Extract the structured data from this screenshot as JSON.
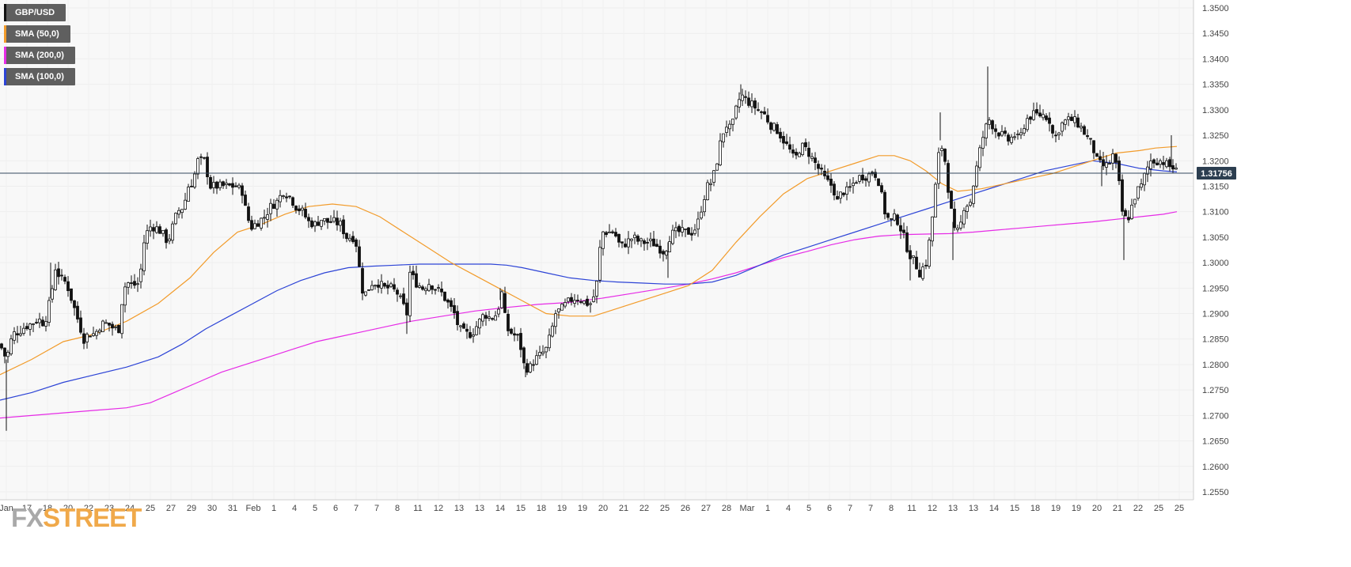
{
  "chart_data": {
    "type": "candlestick",
    "symbol": "GBP/USD",
    "current_price_label": "1.31756",
    "current_price": 1.31756,
    "ylim": [
      1.2525,
      1.3525
    ],
    "y_ticks": [
      "1.3500",
      "1.3450",
      "1.3400",
      "1.3350",
      "1.3300",
      "1.3250",
      "1.3200",
      "1.3150",
      "1.3100",
      "1.3050",
      "1.3000",
      "1.2950",
      "1.2900",
      "1.2850",
      "1.2800",
      "1.2750",
      "1.2700",
      "1.2650",
      "1.2600",
      "1.2550"
    ],
    "x_ticks": [
      "Jan",
      "17",
      "18",
      "20",
      "22",
      "23",
      "24",
      "25",
      "27",
      "29",
      "30",
      "31",
      "Feb",
      "1",
      "4",
      "5",
      "6",
      "7",
      "7",
      "8",
      "11",
      "12",
      "13",
      "13",
      "14",
      "15",
      "18",
      "19",
      "19",
      "20",
      "21",
      "22",
      "25",
      "26",
      "27",
      "28",
      "Mar",
      "1",
      "4",
      "5",
      "6",
      "7",
      "7",
      "8",
      "11",
      "12",
      "13",
      "13",
      "14",
      "15",
      "18",
      "19",
      "19",
      "20",
      "21",
      "22",
      "25",
      "25"
    ],
    "legend": [
      {
        "label": "GBP/USD",
        "color": "#111111"
      },
      {
        "label": "SMA (50,0)",
        "color": "#f29b2a"
      },
      {
        "label": "SMA (200,0)",
        "color": "#e62be6"
      },
      {
        "label": "SMA (100,0)",
        "color": "#2d44d6"
      }
    ],
    "price_path": [
      [
        0,
        1.284
      ],
      [
        8,
        1.281
      ],
      [
        16,
        1.286
      ],
      [
        24,
        1.2865
      ],
      [
        32,
        1.2875
      ],
      [
        40,
        1.288
      ],
      [
        48,
        1.289
      ],
      [
        56,
        1.288
      ],
      [
        64,
        1.293
      ],
      [
        70,
        1.299
      ],
      [
        76,
        1.297
      ],
      [
        84,
        1.296
      ],
      [
        92,
        1.292
      ],
      [
        100,
        1.288
      ],
      [
        106,
        1.285
      ],
      [
        112,
        1.286
      ],
      [
        120,
        1.286
      ],
      [
        128,
        1.288
      ],
      [
        136,
        1.288
      ],
      [
        144,
        1.287
      ],
      [
        150,
        1.287
      ],
      [
        156,
        1.295
      ],
      [
        162,
        1.296
      ],
      [
        168,
        1.2955
      ],
      [
        176,
        1.296
      ],
      [
        182,
        1.304
      ],
      [
        188,
        1.307
      ],
      [
        196,
        1.307
      ],
      [
        204,
        1.306
      ],
      [
        212,
        1.304
      ],
      [
        218,
        1.307
      ],
      [
        224,
        1.31
      ],
      [
        232,
        1.311
      ],
      [
        238,
        1.315
      ],
      [
        244,
        1.316
      ],
      [
        250,
        1.32
      ],
      [
        258,
        1.32
      ],
      [
        266,
        1.315
      ],
      [
        274,
        1.315
      ],
      [
        282,
        1.315
      ],
      [
        290,
        1.315
      ],
      [
        298,
        1.315
      ],
      [
        306,
        1.314
      ],
      [
        312,
        1.309
      ],
      [
        318,
        1.307
      ],
      [
        326,
        1.308
      ],
      [
        334,
        1.309
      ],
      [
        342,
        1.311
      ],
      [
        350,
        1.312
      ],
      [
        358,
        1.314
      ],
      [
        366,
        1.313
      ],
      [
        374,
        1.311
      ],
      [
        382,
        1.31
      ],
      [
        390,
        1.308
      ],
      [
        398,
        1.3075
      ],
      [
        406,
        1.3085
      ],
      [
        414,
        1.308
      ],
      [
        422,
        1.308
      ],
      [
        430,
        1.3075
      ],
      [
        438,
        1.305
      ],
      [
        446,
        1.305
      ],
      [
        452,
        1.303
      ],
      [
        456,
        1.295
      ],
      [
        462,
        1.294
      ],
      [
        470,
        1.296
      ],
      [
        478,
        1.296
      ],
      [
        486,
        1.295
      ],
      [
        494,
        1.295
      ],
      [
        502,
        1.294
      ],
      [
        508,
        1.292
      ],
      [
        514,
        1.29
      ],
      [
        518,
        1.298
      ],
      [
        526,
        1.296
      ],
      [
        534,
        1.295
      ],
      [
        542,
        1.296
      ],
      [
        550,
        1.295
      ],
      [
        558,
        1.294
      ],
      [
        566,
        1.292
      ],
      [
        574,
        1.29
      ],
      [
        580,
        1.287
      ],
      [
        588,
        1.286
      ],
      [
        596,
        1.286
      ],
      [
        604,
        1.288
      ],
      [
        612,
        1.29
      ],
      [
        620,
        1.289
      ],
      [
        628,
        1.29
      ],
      [
        634,
        1.294
      ],
      [
        640,
        1.287
      ],
      [
        648,
        1.286
      ],
      [
        656,
        1.285
      ],
      [
        662,
        1.28
      ],
      [
        668,
        1.279
      ],
      [
        676,
        1.281
      ],
      [
        684,
        1.282
      ],
      [
        690,
        1.283
      ],
      [
        696,
        1.286
      ],
      [
        702,
        1.29
      ],
      [
        710,
        1.291
      ],
      [
        716,
        1.292
      ],
      [
        724,
        1.293
      ],
      [
        732,
        1.293
      ],
      [
        740,
        1.292
      ],
      [
        748,
        1.292
      ],
      [
        754,
        1.296
      ],
      [
        760,
        1.306
      ],
      [
        768,
        1.306
      ],
      [
        776,
        1.306
      ],
      [
        784,
        1.303
      ],
      [
        792,
        1.304
      ],
      [
        800,
        1.305
      ],
      [
        808,
        1.304
      ],
      [
        816,
        1.304
      ],
      [
        824,
        1.304
      ],
      [
        832,
        1.303
      ],
      [
        840,
        1.302
      ],
      [
        846,
        1.305
      ],
      [
        852,
        1.306
      ],
      [
        860,
        1.306
      ],
      [
        868,
        1.306
      ],
      [
        876,
        1.306
      ],
      [
        882,
        1.308
      ],
      [
        888,
        1.312
      ],
      [
        894,
        1.315
      ],
      [
        900,
        1.316
      ],
      [
        906,
        1.32
      ],
      [
        912,
        1.325
      ],
      [
        918,
        1.327
      ],
      [
        924,
        1.326
      ],
      [
        930,
        1.33
      ],
      [
        936,
        1.333
      ],
      [
        942,
        1.332
      ],
      [
        950,
        1.331
      ],
      [
        958,
        1.33
      ],
      [
        966,
        1.329
      ],
      [
        974,
        1.327
      ],
      [
        982,
        1.326
      ],
      [
        990,
        1.324
      ],
      [
        998,
        1.322
      ],
      [
        1004,
        1.32
      ],
      [
        1012,
        1.323
      ],
      [
        1020,
        1.322
      ],
      [
        1028,
        1.32
      ],
      [
        1036,
        1.318
      ],
      [
        1044,
        1.316
      ],
      [
        1052,
        1.315
      ],
      [
        1058,
        1.312
      ],
      [
        1064,
        1.314
      ],
      [
        1072,
        1.314
      ],
      [
        1080,
        1.316
      ],
      [
        1088,
        1.317
      ],
      [
        1096,
        1.317
      ],
      [
        1104,
        1.318
      ],
      [
        1110,
        1.316
      ],
      [
        1118,
        1.31
      ],
      [
        1124,
        1.308
      ],
      [
        1132,
        1.309
      ],
      [
        1140,
        1.306
      ],
      [
        1148,
        1.302
      ],
      [
        1156,
        1.3
      ],
      [
        1162,
        1.298
      ],
      [
        1170,
        1.3
      ],
      [
        1176,
        1.306
      ],
      [
        1182,
        1.315
      ],
      [
        1188,
        1.324
      ],
      [
        1194,
        1.32
      ],
      [
        1200,
        1.312
      ],
      [
        1206,
        1.306
      ],
      [
        1212,
        1.306
      ],
      [
        1218,
        1.311
      ],
      [
        1226,
        1.312
      ],
      [
        1232,
        1.317
      ],
      [
        1238,
        1.322
      ],
      [
        1244,
        1.326
      ],
      [
        1250,
        1.328
      ],
      [
        1258,
        1.326
      ],
      [
        1266,
        1.325
      ],
      [
        1274,
        1.324
      ],
      [
        1282,
        1.325
      ],
      [
        1288,
        1.324
      ],
      [
        1296,
        1.328
      ],
      [
        1304,
        1.329
      ],
      [
        1312,
        1.329
      ],
      [
        1320,
        1.329
      ],
      [
        1326,
        1.328
      ],
      [
        1332,
        1.324
      ],
      [
        1340,
        1.327
      ],
      [
        1348,
        1.328
      ],
      [
        1356,
        1.328
      ],
      [
        1364,
        1.327
      ],
      [
        1372,
        1.325
      ],
      [
        1380,
        1.323
      ],
      [
        1386,
        1.32
      ],
      [
        1392,
        1.319
      ],
      [
        1400,
        1.319
      ],
      [
        1406,
        1.321
      ],
      [
        1412,
        1.318
      ],
      [
        1418,
        1.31
      ],
      [
        1424,
        1.308
      ],
      [
        1430,
        1.311
      ],
      [
        1436,
        1.314
      ],
      [
        1442,
        1.315
      ],
      [
        1448,
        1.318
      ],
      [
        1454,
        1.32
      ],
      [
        1460,
        1.32
      ],
      [
        1468,
        1.32
      ],
      [
        1476,
        1.319
      ],
      [
        1484,
        1.3185
      ],
      [
        1487,
        1.3176
      ]
    ],
    "spikes": [
      [
        8,
        1.267
      ],
      [
        64,
        1.3
      ],
      [
        514,
        1.286
      ],
      [
        632,
        1.295
      ],
      [
        664,
        1.2775
      ],
      [
        844,
        1.297
      ],
      [
        936,
        1.335
      ],
      [
        1150,
        1.2965
      ],
      [
        1188,
        1.3295
      ],
      [
        1204,
        1.3005
      ],
      [
        1248,
        1.3385
      ],
      [
        1314,
        1.331
      ],
      [
        1392,
        1.315
      ],
      [
        1420,
        1.3005
      ],
      [
        1480,
        1.325
      ]
    ],
    "sma50": [
      [
        0,
        1.278
      ],
      [
        40,
        1.281
      ],
      [
        80,
        1.2845
      ],
      [
        120,
        1.286
      ],
      [
        160,
        1.2885
      ],
      [
        200,
        1.292
      ],
      [
        240,
        1.297
      ],
      [
        270,
        1.302
      ],
      [
        300,
        1.306
      ],
      [
        330,
        1.3075
      ],
      [
        360,
        1.3095
      ],
      [
        390,
        1.311
      ],
      [
        420,
        1.3115
      ],
      [
        450,
        1.311
      ],
      [
        480,
        1.309
      ],
      [
        510,
        1.306
      ],
      [
        540,
        1.303
      ],
      [
        570,
        1.3
      ],
      [
        600,
        1.2975
      ],
      [
        630,
        1.295
      ],
      [
        660,
        1.2925
      ],
      [
        690,
        1.29
      ],
      [
        720,
        1.2895
      ],
      [
        750,
        1.2895
      ],
      [
        780,
        1.291
      ],
      [
        810,
        1.2925
      ],
      [
        840,
        1.294
      ],
      [
        870,
        1.2955
      ],
      [
        900,
        1.2985
      ],
      [
        930,
        1.304
      ],
      [
        960,
        1.309
      ],
      [
        990,
        1.3135
      ],
      [
        1020,
        1.3165
      ],
      [
        1050,
        1.318
      ],
      [
        1080,
        1.3195
      ],
      [
        1110,
        1.321
      ],
      [
        1130,
        1.321
      ],
      [
        1150,
        1.32
      ],
      [
        1170,
        1.318
      ],
      [
        1190,
        1.3155
      ],
      [
        1210,
        1.314
      ],
      [
        1240,
        1.3145
      ],
      [
        1270,
        1.3155
      ],
      [
        1300,
        1.3165
      ],
      [
        1330,
        1.3175
      ],
      [
        1360,
        1.319
      ],
      [
        1390,
        1.3205
      ],
      [
        1410,
        1.3215
      ],
      [
        1440,
        1.322
      ],
      [
        1460,
        1.3225
      ],
      [
        1487,
        1.3228
      ]
    ],
    "sma100": [
      [
        0,
        1.273
      ],
      [
        40,
        1.2745
      ],
      [
        80,
        1.2765
      ],
      [
        120,
        1.278
      ],
      [
        160,
        1.2795
      ],
      [
        200,
        1.2815
      ],
      [
        230,
        1.284
      ],
      [
        260,
        1.287
      ],
      [
        290,
        1.2895
      ],
      [
        320,
        1.292
      ],
      [
        350,
        1.2945
      ],
      [
        380,
        1.2965
      ],
      [
        410,
        1.298
      ],
      [
        440,
        1.299
      ],
      [
        470,
        1.2993
      ],
      [
        500,
        1.2995
      ],
      [
        530,
        1.2997
      ],
      [
        560,
        1.2997
      ],
      [
        590,
        1.2997
      ],
      [
        620,
        1.2997
      ],
      [
        640,
        1.2995
      ],
      [
        660,
        1.299
      ],
      [
        690,
        1.298
      ],
      [
        720,
        1.297
      ],
      [
        750,
        1.2965
      ],
      [
        780,
        1.2962
      ],
      [
        810,
        1.296
      ],
      [
        840,
        1.2958
      ],
      [
        870,
        1.2958
      ],
      [
        900,
        1.2962
      ],
      [
        930,
        1.2975
      ],
      [
        960,
        1.2995
      ],
      [
        990,
        1.3015
      ],
      [
        1020,
        1.303
      ],
      [
        1050,
        1.3045
      ],
      [
        1080,
        1.306
      ],
      [
        1110,
        1.3075
      ],
      [
        1140,
        1.309
      ],
      [
        1170,
        1.3105
      ],
      [
        1200,
        1.312
      ],
      [
        1230,
        1.3135
      ],
      [
        1260,
        1.315
      ],
      [
        1290,
        1.3165
      ],
      [
        1320,
        1.318
      ],
      [
        1350,
        1.319
      ],
      [
        1380,
        1.32
      ],
      [
        1410,
        1.3195
      ],
      [
        1440,
        1.3185
      ],
      [
        1470,
        1.318
      ],
      [
        1487,
        1.3178
      ]
    ],
    "sma200": [
      [
        0,
        1.2695
      ],
      [
        40,
        1.27
      ],
      [
        80,
        1.2705
      ],
      [
        120,
        1.271
      ],
      [
        160,
        1.2715
      ],
      [
        190,
        1.2725
      ],
      [
        220,
        1.2745
      ],
      [
        250,
        1.2765
      ],
      [
        280,
        1.2785
      ],
      [
        310,
        1.28
      ],
      [
        340,
        1.2815
      ],
      [
        370,
        1.283
      ],
      [
        400,
        1.2845
      ],
      [
        430,
        1.2855
      ],
      [
        460,
        1.2865
      ],
      [
        490,
        1.2875
      ],
      [
        520,
        1.2885
      ],
      [
        560,
        1.2895
      ],
      [
        600,
        1.2905
      ],
      [
        640,
        1.2912
      ],
      [
        680,
        1.2918
      ],
      [
        720,
        1.2922
      ],
      [
        760,
        1.293
      ],
      [
        800,
        1.294
      ],
      [
        840,
        1.295
      ],
      [
        870,
        1.2958
      ],
      [
        900,
        1.2968
      ],
      [
        930,
        1.298
      ],
      [
        960,
        1.2995
      ],
      [
        990,
        1.301
      ],
      [
        1020,
        1.3022
      ],
      [
        1050,
        1.3035
      ],
      [
        1080,
        1.3045
      ],
      [
        1110,
        1.3052
      ],
      [
        1140,
        1.3055
      ],
      [
        1170,
        1.3056
      ],
      [
        1200,
        1.3057
      ],
      [
        1230,
        1.306
      ],
      [
        1260,
        1.3064
      ],
      [
        1290,
        1.3068
      ],
      [
        1320,
        1.3072
      ],
      [
        1350,
        1.3076
      ],
      [
        1380,
        1.308
      ],
      [
        1410,
        1.3085
      ],
      [
        1440,
        1.309
      ],
      [
        1470,
        1.3095
      ],
      [
        1487,
        1.31
      ]
    ]
  },
  "brand": {
    "part1": "FX",
    "part2": "STREET"
  },
  "colors": {
    "background": "#ffffff",
    "grid": "#eeeeee",
    "candle": "#111111",
    "price_line": "#34495e",
    "price_tag": "#2c3e50"
  }
}
